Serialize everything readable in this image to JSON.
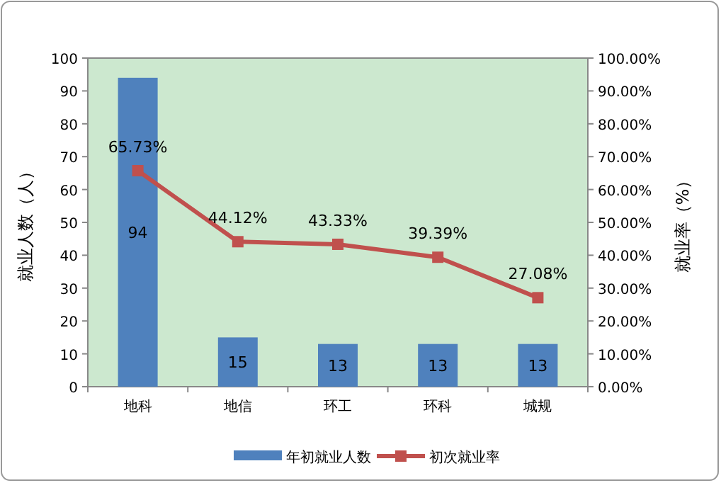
{
  "chart_data": {
    "type": "bar",
    "categories": [
      "地科",
      "地信",
      "环工",
      "环科",
      "城规"
    ],
    "ylabel": "就业人数（人）",
    "y2label": "就业率（%）",
    "ylim": [
      0,
      100
    ],
    "yticks": [
      0,
      10,
      20,
      30,
      40,
      50,
      60,
      70,
      80,
      90,
      100
    ],
    "y2lim": [
      0,
      100
    ],
    "y2ticks": [
      {
        "value": 0,
        "label": "0.00%"
      },
      {
        "value": 10,
        "label": "10.00%"
      },
      {
        "value": 20,
        "label": "20.00%"
      },
      {
        "value": 30,
        "label": "30.00%"
      },
      {
        "value": 40,
        "label": "40.00%"
      },
      {
        "value": 50,
        "label": "50.00%"
      },
      {
        "value": 60,
        "label": "60.00%"
      },
      {
        "value": 70,
        "label": "70.00%"
      },
      {
        "value": 80,
        "label": "80.00%"
      },
      {
        "value": 90,
        "label": "90.00%"
      },
      {
        "value": 100,
        "label": "100.00%"
      }
    ],
    "legend": "bottom",
    "series": [
      {
        "name": "年初就业人数",
        "color": "#4f81bd",
        "values": [
          94,
          15,
          13,
          13,
          13
        ],
        "value_labels": [
          "94",
          "15",
          "13",
          "13",
          "13"
        ]
      },
      {
        "name": "初次就业率",
        "type": "line",
        "axis": "y2",
        "marker": "square",
        "color": "#c0504d",
        "values": [
          65.73,
          44.12,
          43.33,
          39.39,
          27.08
        ],
        "value_labels": [
          "65.73%",
          "44.12%",
          "43.33%",
          "39.39%",
          "27.08%"
        ]
      }
    ]
  }
}
